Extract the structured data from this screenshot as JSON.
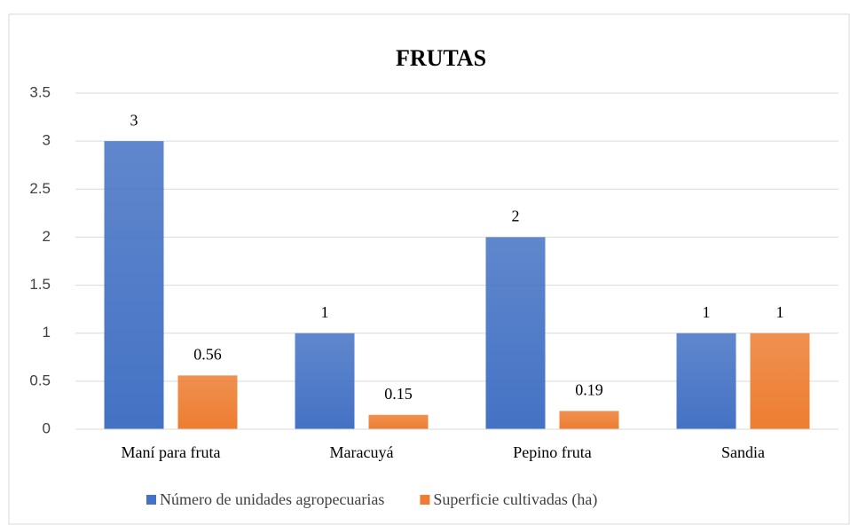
{
  "chart_data": {
    "type": "bar",
    "title": "FRUTAS",
    "categories": [
      "Maní para fruta",
      "Maracuyá",
      "Pepino fruta",
      "Sandia"
    ],
    "series": [
      {
        "name": "Número de unidades agropecuarias",
        "color": "#4472c4",
        "values": [
          3,
          1,
          2,
          1
        ]
      },
      {
        "name": "Superficie cultivadas (ha)",
        "color": "#ed7d31",
        "values": [
          0.56,
          0.15,
          0.19,
          1
        ]
      }
    ],
    "ylim": [
      0,
      3.5
    ],
    "yticks": [
      0,
      0.5,
      1,
      1.5,
      2,
      2.5,
      3,
      3.5
    ],
    "grid": true,
    "legend": "bottom"
  }
}
